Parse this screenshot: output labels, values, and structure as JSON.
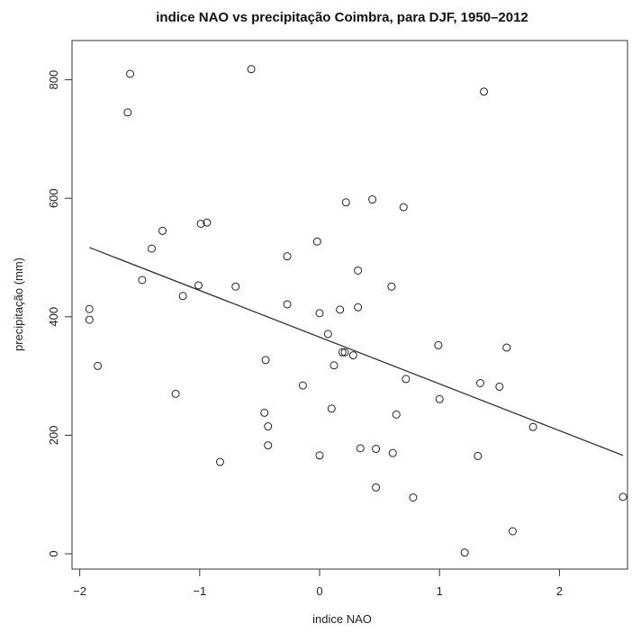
{
  "chart_data": {
    "type": "scatter",
    "title": "indice NAO vs precipitação Coimbra, para DJF, 1950–2012",
    "xlabel": "indice NAO",
    "ylabel": "precipitação (mm)",
    "xlim": [
      -2.1,
      2.6
    ],
    "ylim": [
      -25,
      850
    ],
    "xticks": [
      -2,
      -1,
      0,
      1,
      2
    ],
    "yticks": [
      0,
      200,
      400,
      600,
      800
    ],
    "grid": false,
    "points": [
      {
        "x": -1.92,
        "y": 413
      },
      {
        "x": -1.92,
        "y": 395
      },
      {
        "x": -1.85,
        "y": 317
      },
      {
        "x": -1.58,
        "y": 810
      },
      {
        "x": -1.6,
        "y": 745
      },
      {
        "x": -1.31,
        "y": 545
      },
      {
        "x": -1.4,
        "y": 515
      },
      {
        "x": -1.48,
        "y": 462
      },
      {
        "x": -1.14,
        "y": 435
      },
      {
        "x": -1.2,
        "y": 270
      },
      {
        "x": -0.99,
        "y": 557
      },
      {
        "x": -0.94,
        "y": 559
      },
      {
        "x": -1.01,
        "y": 453
      },
      {
        "x": -0.7,
        "y": 451
      },
      {
        "x": -0.83,
        "y": 155
      },
      {
        "x": -0.57,
        "y": 818
      },
      {
        "x": -0.27,
        "y": 502
      },
      {
        "x": -0.27,
        "y": 421
      },
      {
        "x": -0.45,
        "y": 327
      },
      {
        "x": -0.46,
        "y": 238
      },
      {
        "x": -0.43,
        "y": 215
      },
      {
        "x": -0.43,
        "y": 183
      },
      {
        "x": -0.14,
        "y": 284
      },
      {
        "x": -0.02,
        "y": 527
      },
      {
        "x": 0.0,
        "y": 406
      },
      {
        "x": 0.07,
        "y": 371
      },
      {
        "x": 0.12,
        "y": 318
      },
      {
        "x": 0.1,
        "y": 245
      },
      {
        "x": 0.0,
        "y": 166
      },
      {
        "x": 0.22,
        "y": 593
      },
      {
        "x": 0.17,
        "y": 412
      },
      {
        "x": 0.19,
        "y": 340
      },
      {
        "x": 0.21,
        "y": 340
      },
      {
        "x": 0.28,
        "y": 335
      },
      {
        "x": 0.32,
        "y": 478
      },
      {
        "x": 0.32,
        "y": 416
      },
      {
        "x": 0.34,
        "y": 178
      },
      {
        "x": 0.44,
        "y": 598
      },
      {
        "x": 0.47,
        "y": 177
      },
      {
        "x": 0.47,
        "y": 112
      },
      {
        "x": 0.7,
        "y": 585
      },
      {
        "x": 0.6,
        "y": 451
      },
      {
        "x": 0.72,
        "y": 295
      },
      {
        "x": 0.64,
        "y": 235
      },
      {
        "x": 0.61,
        "y": 170
      },
      {
        "x": 0.78,
        "y": 95
      },
      {
        "x": 0.99,
        "y": 352
      },
      {
        "x": 1.0,
        "y": 261
      },
      {
        "x": 1.37,
        "y": 780
      },
      {
        "x": 1.34,
        "y": 288
      },
      {
        "x": 1.32,
        "y": 165
      },
      {
        "x": 1.21,
        "y": 2
      },
      {
        "x": 1.56,
        "y": 348
      },
      {
        "x": 1.5,
        "y": 282
      },
      {
        "x": 1.61,
        "y": 38
      },
      {
        "x": 1.78,
        "y": 214
      },
      {
        "x": 2.53,
        "y": 96
      }
    ],
    "regression_line": {
      "x": [
        -1.92,
        2.53
      ],
      "y": [
        517,
        166
      ]
    }
  }
}
